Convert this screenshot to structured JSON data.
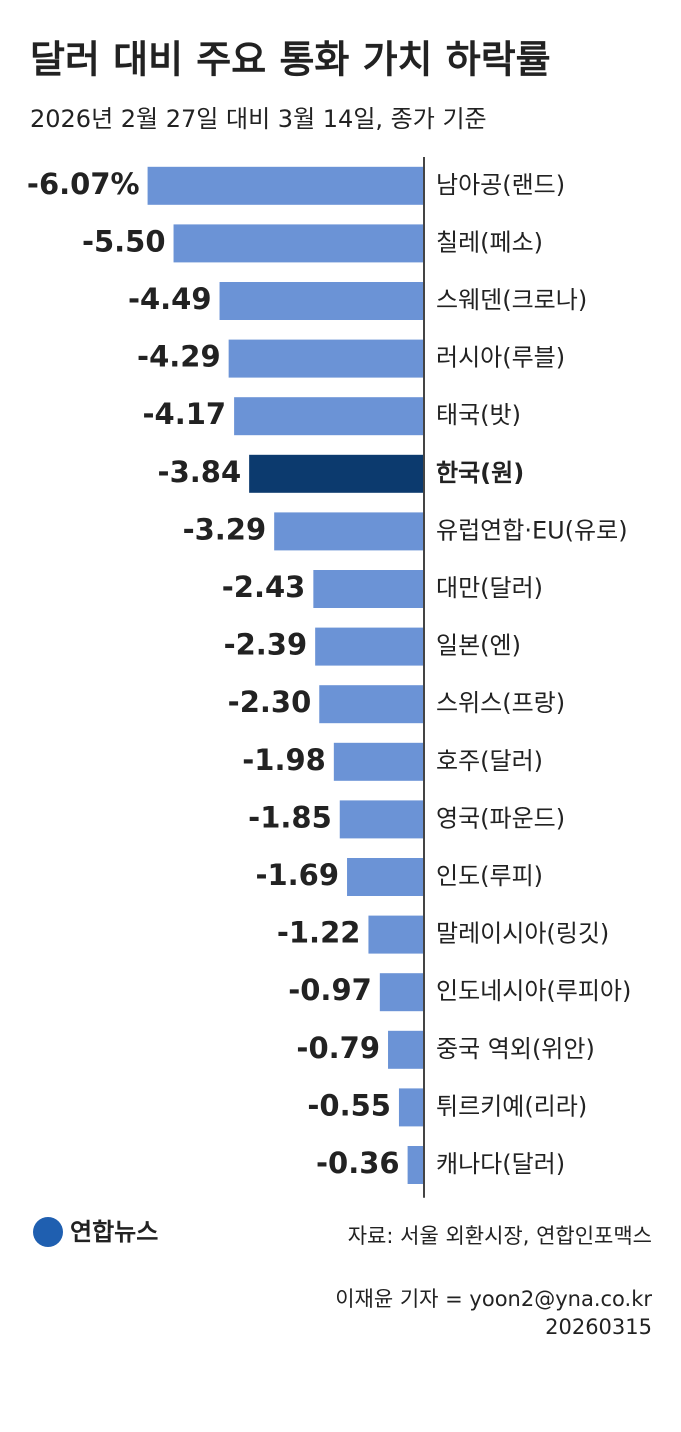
{
  "chart_data": {
    "type": "bar",
    "orientation": "horizontal",
    "title": "달러 대비 주요 통화 가치 하락률",
    "subtitle": "2026년 2월 27일 대비 3월 14일, 종가 기준",
    "categories": [
      "남아공(랜드)",
      "칠레(페소)",
      "스웨덴(크로나)",
      "러시아(루블)",
      "태국(밧)",
      "한국(원)",
      "유럽연합·EU(유로)",
      "대만(달러)",
      "일본(엔)",
      "스위스(프랑)",
      "호주(달러)",
      "영국(파운드)",
      "인도(루피)",
      "말레이시아(링깃)",
      "인도네시아(루피아)",
      "중국 역외(위안)",
      "튀르키예(리라)",
      "캐나다(달러)"
    ],
    "values": [
      -6.07,
      -5.5,
      -4.49,
      -4.29,
      -4.17,
      -3.84,
      -3.29,
      -2.43,
      -2.39,
      -2.3,
      -1.98,
      -1.85,
      -1.69,
      -1.22,
      -0.97,
      -0.79,
      -0.55,
      -0.36
    ],
    "value_labels": [
      "-6.07%",
      "-5.50",
      "-4.49",
      "-4.29",
      "-4.17",
      "-3.84",
      "-3.29",
      "-2.43",
      "-2.39",
      "-2.30",
      "-1.98",
      "-1.85",
      "-1.69",
      "-1.22",
      "-0.97",
      "-0.79",
      "-0.55",
      "-0.36"
    ],
    "colors": [
      "#6b93d6",
      "#6b93d6",
      "#6b93d6",
      "#6b93d6",
      "#6b93d6",
      "#0c3a6e",
      "#6b93d6",
      "#6b93d6",
      "#6b93d6",
      "#6b93d6",
      "#6b93d6",
      "#6b93d6",
      "#6b93d6",
      "#6b93d6",
      "#6b93d6",
      "#6b93d6",
      "#6b93d6",
      "#6b93d6"
    ],
    "xlim": [
      -6.5,
      0
    ],
    "logo": "연합뉴스",
    "source": "자료: 서울 외환시장, 연합인포맥스",
    "credit": "이재윤 기자 = yoon2@yna.co.kr",
    "date": "20260315"
  }
}
